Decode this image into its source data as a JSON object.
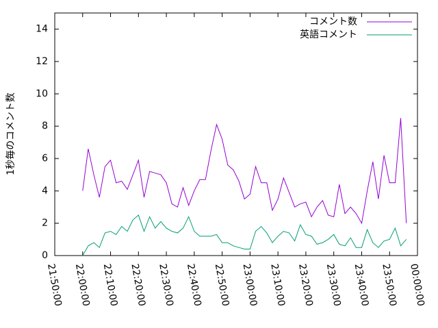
{
  "chart_data": {
    "type": "line",
    "ylabel": "1秒毎のコメント数",
    "x": [
      79200,
      79320,
      79440,
      79560,
      79680,
      79800,
      79920,
      80040,
      80160,
      80280,
      80400,
      80520,
      80640,
      80760,
      80880,
      81000,
      81120,
      81240,
      81360,
      81480,
      81600,
      81720,
      81840,
      81960,
      82080,
      82200,
      82320,
      82440,
      82560,
      82680,
      82800,
      82920,
      83040,
      83160,
      83280,
      83400,
      83520,
      83640,
      83760,
      83880,
      84000,
      84120,
      84240,
      84360,
      84480,
      84600,
      84720,
      84840,
      84960,
      85080,
      85200,
      85320,
      85440,
      85560,
      85680,
      85800,
      85920,
      86040,
      86160
    ],
    "series": [
      {
        "name": "コメント数",
        "color": "#9400d3",
        "values": [
          4.0,
          6.6,
          5.0,
          3.6,
          5.5,
          5.9,
          4.5,
          4.6,
          4.1,
          5.0,
          5.9,
          3.6,
          5.2,
          5.1,
          5.0,
          4.5,
          3.2,
          3.0,
          4.2,
          3.1,
          4.0,
          4.7,
          4.7,
          6.5,
          8.1,
          7.2,
          5.6,
          5.3,
          4.6,
          3.5,
          3.8,
          5.5,
          4.5,
          4.5,
          2.8,
          3.5,
          4.8,
          3.9,
          3.0,
          3.2,
          3.3,
          2.4,
          3.0,
          3.4,
          2.5,
          2.4,
          4.4,
          2.6,
          3.0,
          2.6,
          2.0,
          4.0,
          5.8,
          3.5,
          6.2,
          4.5,
          4.5,
          8.5,
          2.0
        ]
      },
      {
        "name": "英語コメント",
        "color": "#009e73",
        "values": [
          0.0,
          0.6,
          0.8,
          0.5,
          1.4,
          1.5,
          1.3,
          1.8,
          1.5,
          2.2,
          2.5,
          1.5,
          2.4,
          1.7,
          2.1,
          1.7,
          1.5,
          1.4,
          1.7,
          2.4,
          1.5,
          1.2,
          1.2,
          1.2,
          1.3,
          0.8,
          0.8,
          0.6,
          0.5,
          0.4,
          0.4,
          1.5,
          1.8,
          1.4,
          0.8,
          1.2,
          1.5,
          1.4,
          0.9,
          1.9,
          1.3,
          1.2,
          0.7,
          0.8,
          1.0,
          1.3,
          0.7,
          0.6,
          1.1,
          0.5,
          0.5,
          1.6,
          0.8,
          0.5,
          0.9,
          1.0,
          1.7,
          0.6,
          1.0
        ]
      }
    ],
    "xlim": [
      78600,
      86400
    ],
    "xticks": [
      {
        "value": 78600,
        "label": "21:50:00"
      },
      {
        "value": 79200,
        "label": "22:00:00"
      },
      {
        "value": 79800,
        "label": "22:10:00"
      },
      {
        "value": 80400,
        "label": "22:20:00"
      },
      {
        "value": 81000,
        "label": "22:30:00"
      },
      {
        "value": 81600,
        "label": "22:40:00"
      },
      {
        "value": 82200,
        "label": "22:50:00"
      },
      {
        "value": 82800,
        "label": "23:00:00"
      },
      {
        "value": 83400,
        "label": "23:10:00"
      },
      {
        "value": 84000,
        "label": "23:20:00"
      },
      {
        "value": 84600,
        "label": "23:30:00"
      },
      {
        "value": 85200,
        "label": "23:40:00"
      },
      {
        "value": 85800,
        "label": "23:50:00"
      },
      {
        "value": 86400,
        "label": "00:00:00"
      }
    ],
    "ylim": [
      0,
      15
    ],
    "yticks": [
      0,
      2,
      4,
      6,
      8,
      10,
      12,
      14
    ],
    "legend": "top-right"
  }
}
